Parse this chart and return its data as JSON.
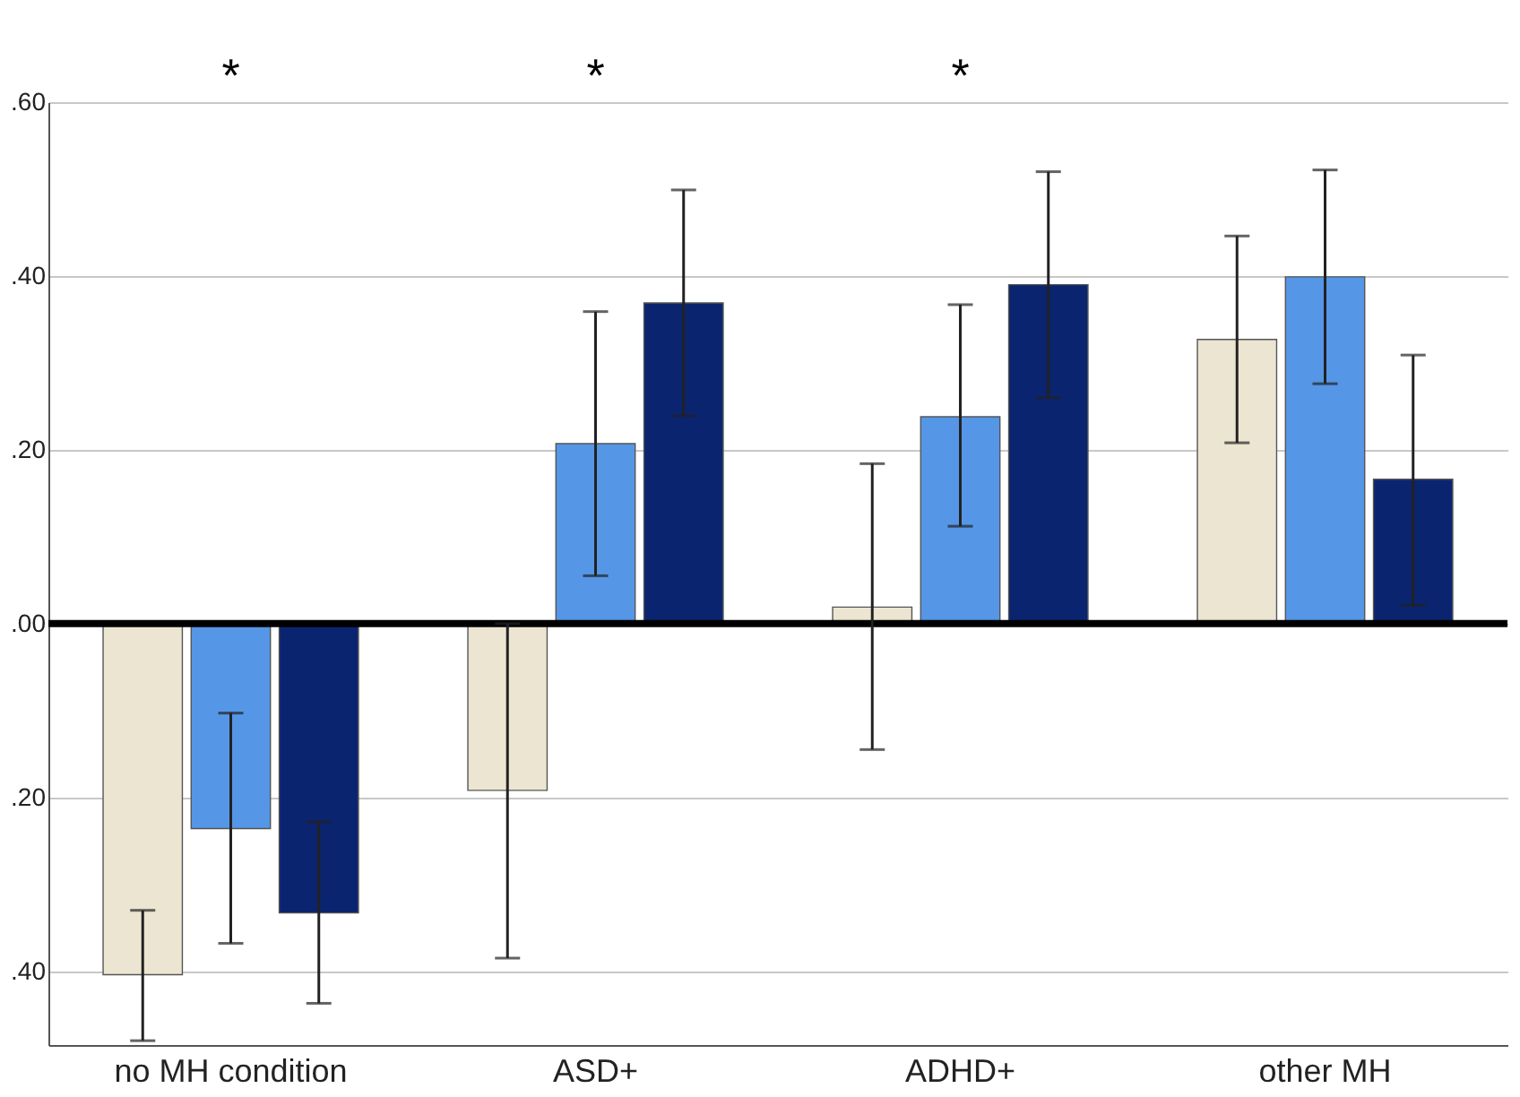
{
  "chart_data": {
    "type": "bar",
    "categories": [
      "no MH condition",
      "ASD+",
      "ADHD+",
      "other MH"
    ],
    "series": [
      {
        "color": "#ebe5d1",
        "values": [
          -0.404,
          -0.192,
          0.019,
          0.327
        ],
        "errors": [
          [
            -0.48,
            -0.33
          ],
          [
            -0.385,
            0.0
          ],
          [
            -0.145,
            0.184
          ],
          [
            0.208,
            0.446
          ]
        ]
      },
      {
        "color": "#5596e6",
        "values": [
          -0.236,
          0.207,
          0.238,
          0.399
        ],
        "errors": [
          [
            -0.368,
            -0.103
          ],
          [
            0.055,
            0.359
          ],
          [
            0.112,
            0.367
          ],
          [
            0.276,
            0.522
          ]
        ]
      },
      {
        "color": "#0a2470",
        "values": [
          -0.333,
          0.369,
          0.39,
          0.166
        ],
        "errors": [
          [
            -0.437,
            -0.228
          ],
          [
            0.239,
            0.499
          ],
          [
            0.26,
            0.52
          ],
          [
            0.021,
            0.309
          ]
        ]
      }
    ],
    "ylim": [
      -0.485,
      0.6
    ],
    "yticks": [
      {
        "value": 0.6,
        "label": ".60"
      },
      {
        "value": 0.4,
        "label": ".40"
      },
      {
        "value": 0.2,
        "label": ".20"
      },
      {
        "value": 0,
        "label": ".00"
      },
      {
        "value": -0.2,
        "label": ".20"
      },
      {
        "value": -0.4,
        "label": ".40"
      }
    ],
    "ref_lines": [
      {
        "axis": "y",
        "value": 0,
        "color": "#000000"
      }
    ],
    "annotations": [
      "*",
      "*",
      "*"
    ],
    "grid": "y",
    "legend": false
  }
}
